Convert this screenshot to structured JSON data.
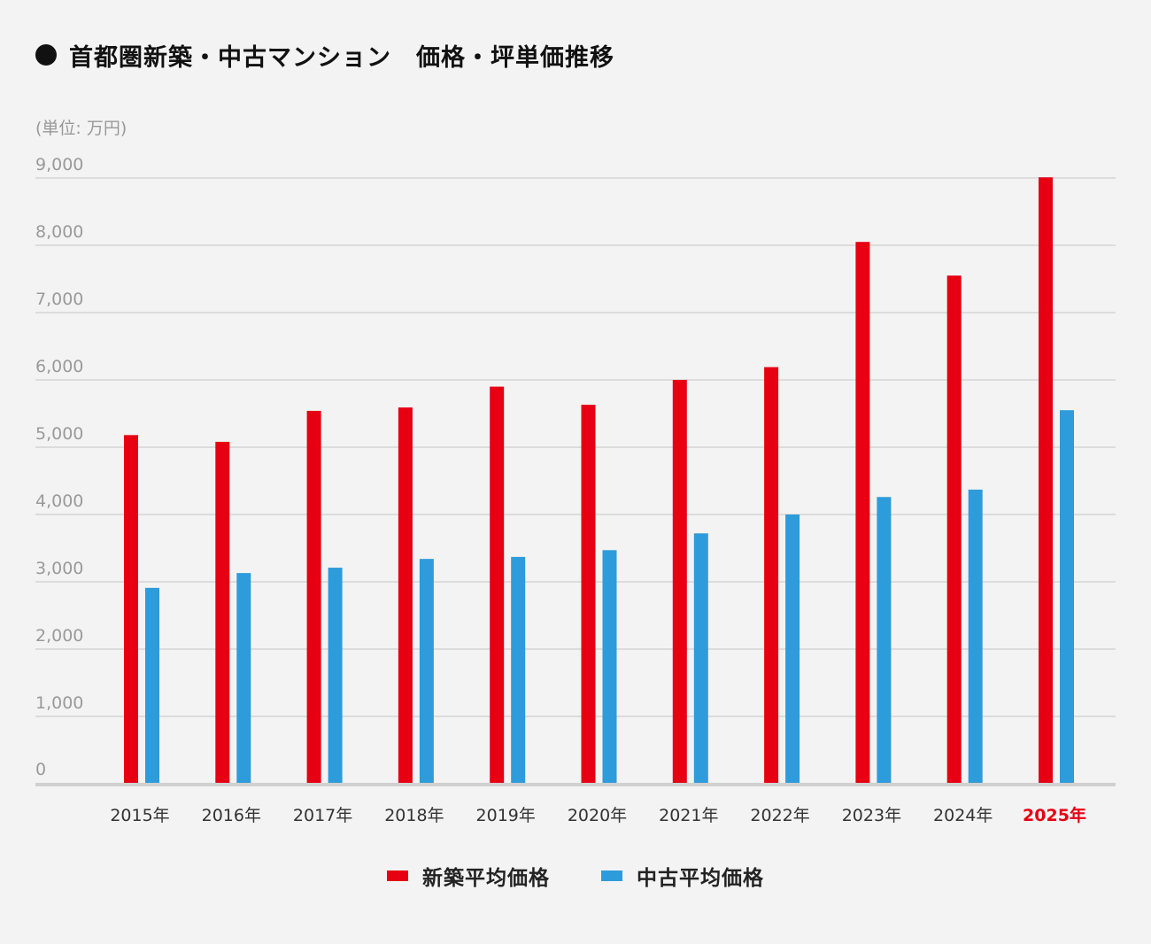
{
  "title": "首都圏新築・中古マンション　価格・坪単価推移",
  "unit_label": "(単位: 万円)",
  "colors": {
    "new": "#e60012",
    "used": "#2e9bdb",
    "highlight": "#e60012",
    "grid": "#d4d4d4",
    "baseline": "#d0d0d0",
    "tick": "#9a9a9a",
    "xtick": "#333333"
  },
  "legend": [
    {
      "name": "新築平均価格",
      "color": "#e60012"
    },
    {
      "name": "中古平均価格",
      "color": "#2e9bdb"
    }
  ],
  "chart_data": {
    "type": "bar",
    "title": "首都圏新築・中古マンション　価格・坪単価推移",
    "ylabel": "(単位: 万円)",
    "xlabel": "",
    "ylim": [
      0,
      9000
    ],
    "yticks": [
      0,
      1000,
      2000,
      3000,
      4000,
      5000,
      6000,
      7000,
      8000,
      9000
    ],
    "ytick_labels": [
      "0",
      "1,000",
      "2,000",
      "3,000",
      "4,000",
      "5,000",
      "6,000",
      "7,000",
      "8,000",
      "9,000"
    ],
    "grid": true,
    "legend_position": "bottom-center",
    "highlight_category": "2025年",
    "categories": [
      "2015年",
      "2016年",
      "2017年",
      "2018年",
      "2019年",
      "2020年",
      "2021年",
      "2022年",
      "2023年",
      "2024年",
      "2025年"
    ],
    "series": [
      {
        "name": "新築平均価格",
        "values": [
          5180,
          5080,
          5540,
          5590,
          5900,
          5630,
          6000,
          6190,
          8050,
          7550,
          9010
        ]
      },
      {
        "name": "中古平均価格",
        "values": [
          2910,
          3130,
          3210,
          3340,
          3370,
          3470,
          3720,
          4000,
          4260,
          4370,
          5550
        ]
      }
    ]
  }
}
